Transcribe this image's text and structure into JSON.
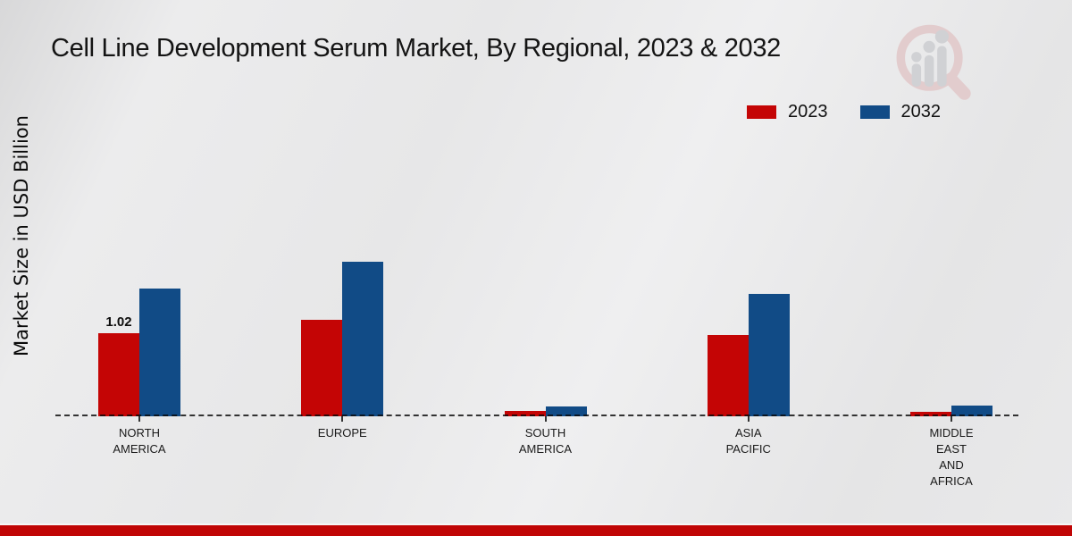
{
  "title": "Cell Line Development Serum Market, By Regional, 2023 & 2032",
  "ylabel": "Market Size in USD Billion",
  "legend": [
    {
      "label": "2023",
      "color": "#c40505"
    },
    {
      "label": "2032",
      "color": "#114b86"
    }
  ],
  "watermark": {
    "name": "magnifier-bar-chart-logo",
    "ring_color": "#e2cbcc",
    "bars_color": "#cfd0d3"
  },
  "footer": {
    "color": "#c00505"
  },
  "chart_data": {
    "type": "bar",
    "title": "Cell Line Development Serum Market, By Regional, 2023 & 2032",
    "xlabel": "",
    "ylabel": "Market Size in USD Billion",
    "categories": [
      "NORTH AMERICA",
      "EUROPE",
      "SOUTH AMERICA",
      "ASIA PACIFIC",
      "MIDDLE EAST AND AFRICA"
    ],
    "series": [
      {
        "name": "2023",
        "color": "#c40505",
        "values": [
          1.02,
          1.18,
          0.07,
          1.0,
          0.06
        ]
      },
      {
        "name": "2032",
        "color": "#114b86",
        "values": [
          1.57,
          1.9,
          0.12,
          1.5,
          0.13
        ]
      }
    ],
    "data_labels": [
      {
        "series_index": 0,
        "category_index": 0,
        "text": "1.02"
      }
    ],
    "ylim": [
      0,
      2.0
    ],
    "grid": false,
    "legend_position": "top-right",
    "baseline_style": "dashed"
  }
}
